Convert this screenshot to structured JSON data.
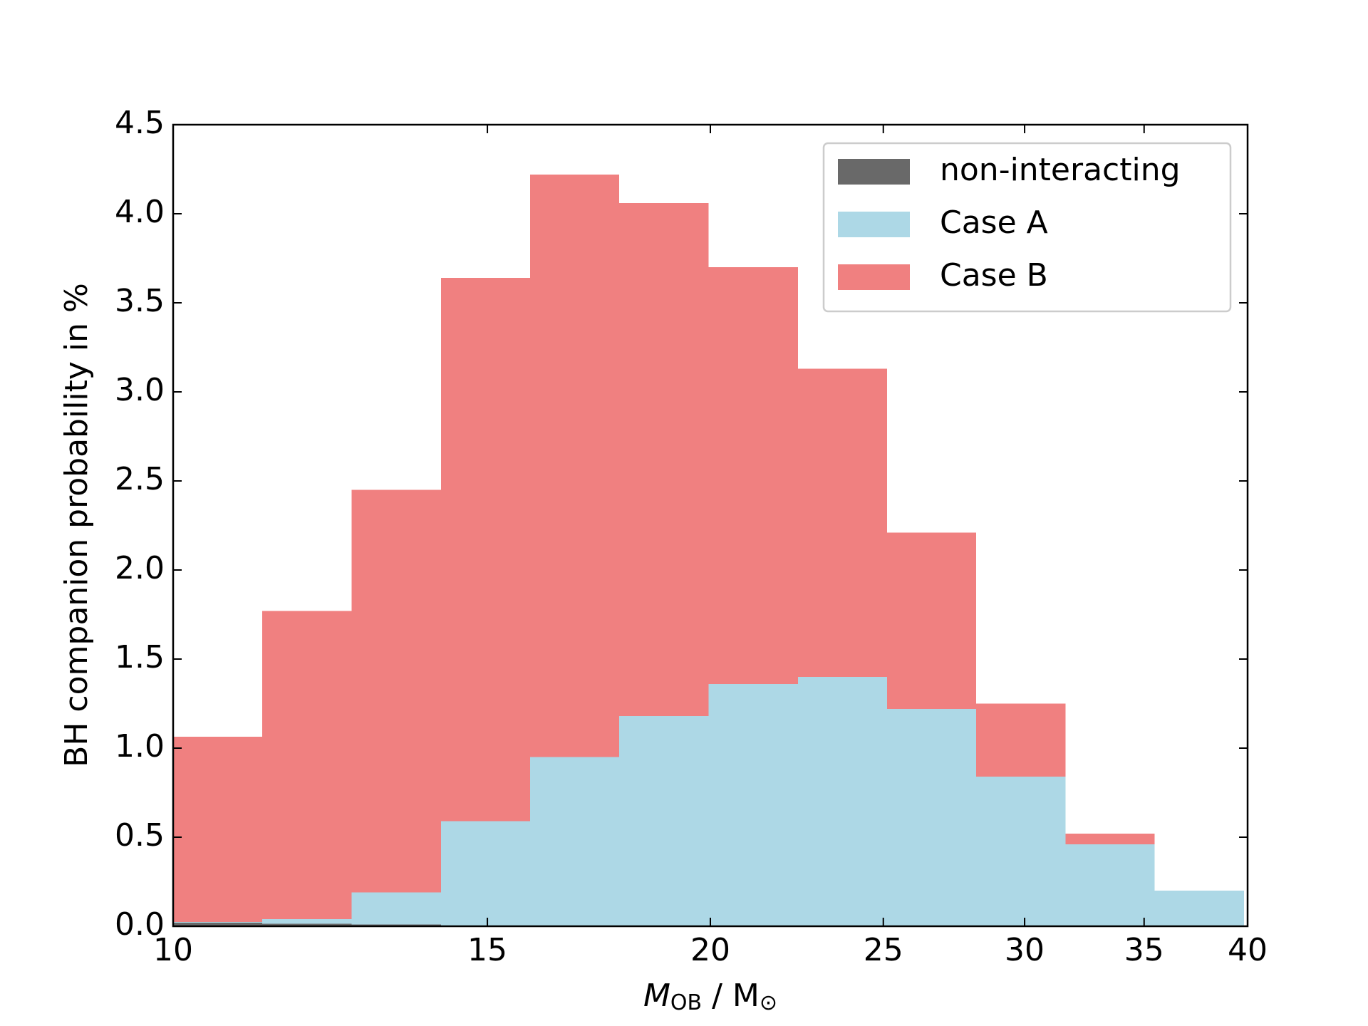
{
  "chart_data": {
    "type": "histogram",
    "stacked": true,
    "ylabel": "BH companion probability in %",
    "xlabel": {
      "symbol": "M",
      "subscript": "OB",
      "unit": " / M",
      "unit_subscript": "⊙"
    },
    "xscale": "log",
    "bins": [
      10,
      11.22,
      12.59,
      14.13,
      15.85,
      17.78,
      19.95,
      22.39,
      25.12,
      28.18,
      31.62,
      35.48,
      39.81
    ],
    "series": [
      {
        "name": "non-interacting",
        "color": "#696969",
        "values": [
          0.02,
          0.015,
          0.01,
          0.005,
          0.003,
          0,
          0,
          0,
          0,
          0,
          0,
          0
        ]
      },
      {
        "name": "Case A",
        "color": "#add8e6",
        "values": [
          0.005,
          0.025,
          0.18,
          0.585,
          0.947,
          1.18,
          1.36,
          1.4,
          1.22,
          0.84,
          0.46,
          0.2
        ]
      },
      {
        "name": "Case B",
        "color": "#f08080",
        "values": [
          1.04,
          1.73,
          2.26,
          3.05,
          3.27,
          2.88,
          2.34,
          1.73,
          0.99,
          0.41,
          0.06,
          0
        ]
      }
    ],
    "xlim": [
      10,
      40
    ],
    "xticks": [
      10,
      15,
      20,
      25,
      30,
      35,
      40
    ],
    "ylim": [
      0,
      4.5
    ],
    "yticks": [
      {
        "value": 0,
        "label": "0.0"
      },
      0.5,
      {
        "value": 1,
        "label": "1.0"
      },
      1.5,
      {
        "value": 2,
        "label": "2.0"
      },
      2.5,
      {
        "value": 3,
        "label": "3.0"
      },
      3.5,
      {
        "value": 4,
        "label": "4.0"
      },
      4.5
    ],
    "legend": "upper right"
  }
}
